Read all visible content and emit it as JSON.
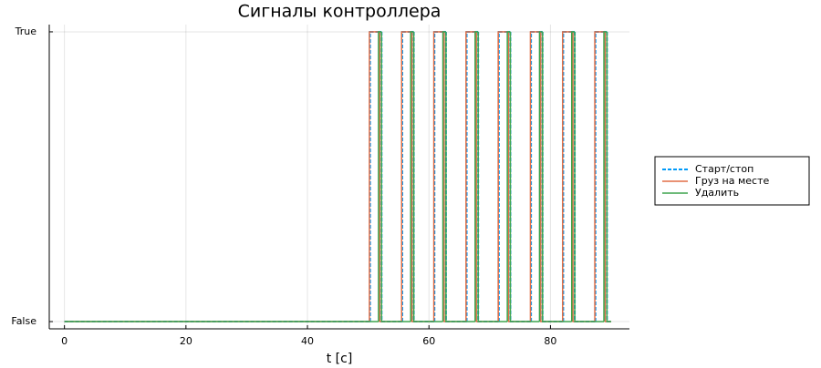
{
  "chart_data": {
    "type": "step",
    "title": "Сигналы контроллера",
    "x_label": "t [c]",
    "x": [
      0,
      50.2,
      50.3,
      51.7,
      51.9,
      52.2,
      55.5,
      55.6,
      57.0,
      57.2,
      57.5,
      60.8,
      60.9,
      62.3,
      62.5,
      62.8,
      66.1,
      66.2,
      67.6,
      67.8,
      68.1,
      71.4,
      71.5,
      72.9,
      73.1,
      73.4,
      76.7,
      76.8,
      78.2,
      78.4,
      78.7,
      82.0,
      82.1,
      83.5,
      83.7,
      84.0,
      87.3,
      87.4,
      88.8,
      89.0,
      89.3,
      90
    ],
    "series": [
      {
        "name": "Старт/стоп",
        "color": "#009af9",
        "dash": true,
        "values": [
          0,
          0,
          1,
          1,
          1,
          0,
          0,
          1,
          1,
          1,
          0,
          0,
          1,
          1,
          1,
          0,
          0,
          1,
          1,
          1,
          0,
          0,
          1,
          1,
          1,
          0,
          0,
          1,
          1,
          1,
          0,
          0,
          1,
          1,
          1,
          0,
          0,
          1,
          1,
          1,
          0,
          0
        ]
      },
      {
        "name": "Груз на месте",
        "color": "#e26f46",
        "dash": false,
        "values": [
          0,
          1,
          1,
          1,
          0,
          0,
          1,
          1,
          1,
          0,
          0,
          1,
          1,
          1,
          0,
          0,
          1,
          1,
          1,
          0,
          0,
          1,
          1,
          1,
          0,
          0,
          1,
          1,
          1,
          0,
          0,
          1,
          1,
          1,
          0,
          0,
          1,
          1,
          1,
          0,
          0,
          0
        ]
      },
      {
        "name": "Удалить",
        "color": "#3da44d",
        "dash": false,
        "values": [
          0,
          0,
          0,
          1,
          1,
          0,
          0,
          0,
          1,
          1,
          0,
          0,
          0,
          1,
          1,
          0,
          0,
          0,
          1,
          1,
          0,
          0,
          0,
          1,
          1,
          0,
          0,
          0,
          1,
          1,
          0,
          0,
          0,
          1,
          1,
          0,
          0,
          0,
          1,
          1,
          0,
          0
        ]
      }
    ],
    "xlim": [
      -2.5,
      93
    ],
    "xticks": [
      0,
      20,
      40,
      60,
      80
    ],
    "ylim": [
      -0.025,
      1.025
    ],
    "yticks": [
      {
        "value": 0,
        "label": "False"
      },
      {
        "value": 1,
        "label": "True"
      }
    ],
    "grid": true,
    "legend": "right"
  }
}
